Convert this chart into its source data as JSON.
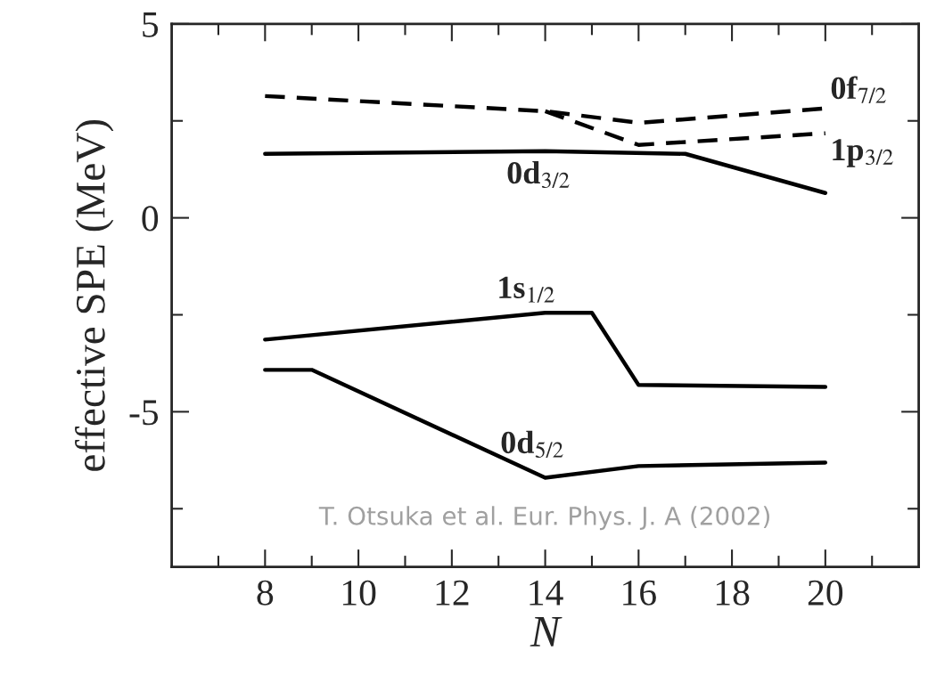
{
  "chart_data": {
    "type": "line",
    "xlabel": "N",
    "ylabel": "effective SPE (MeV)",
    "xlim": [
      6,
      22
    ],
    "ylim": [
      -9,
      5
    ],
    "xticks": [
      {
        "value": 7,
        "label": null
      },
      8,
      {
        "value": 9,
        "label": null
      },
      10,
      {
        "value": 11,
        "label": null
      },
      12,
      {
        "value": 13,
        "label": null
      },
      14,
      {
        "value": 15,
        "label": null
      },
      16,
      {
        "value": 17,
        "label": null
      },
      18,
      {
        "value": 19,
        "label": null
      },
      20,
      {
        "value": 21,
        "label": null
      }
    ],
    "yticks": [
      5,
      {
        "value": 2.5,
        "label": null
      },
      0,
      {
        "value": -2.5,
        "label": null
      },
      -5,
      {
        "value": -7.5,
        "label": null
      }
    ],
    "grid": false,
    "legend": false,
    "marker": "none",
    "series": [
      {
        "name": "0f$_{7/2}$",
        "color": "#000000",
        "line_style": "dashed",
        "x": [
          8,
          14,
          16,
          20
        ],
        "values": [
          3.14,
          2.75,
          2.45,
          2.82
        ]
      },
      {
        "name": "1p$_{3/2}$",
        "color": "#000000",
        "line_style": "dashed",
        "x": [
          14,
          16,
          20
        ],
        "values": [
          2.75,
          1.88,
          2.18
        ]
      },
      {
        "name": "0d$_{3/2}$",
        "color": "#000000",
        "line_style": "solid",
        "x": [
          8,
          14,
          17,
          20
        ],
        "values": [
          1.65,
          1.72,
          1.65,
          0.64
        ]
      },
      {
        "name": "1s$_{1/2}$",
        "color": "#000000",
        "line_style": "solid",
        "x": [
          8,
          14,
          15,
          16,
          20
        ],
        "values": [
          -3.14,
          -2.45,
          -2.45,
          -4.31,
          -4.36
        ]
      },
      {
        "name": "0d$_{5/2}$",
        "color": "#000000",
        "line_style": "solid",
        "x": [
          8,
          9,
          14,
          16,
          20
        ],
        "values": [
          -3.92,
          -3.92,
          -6.7,
          -6.4,
          -6.31
        ]
      }
    ],
    "annotations": [
      "T. Otsuka et al. Eur. Phys. J. A (2002)"
    ]
  }
}
